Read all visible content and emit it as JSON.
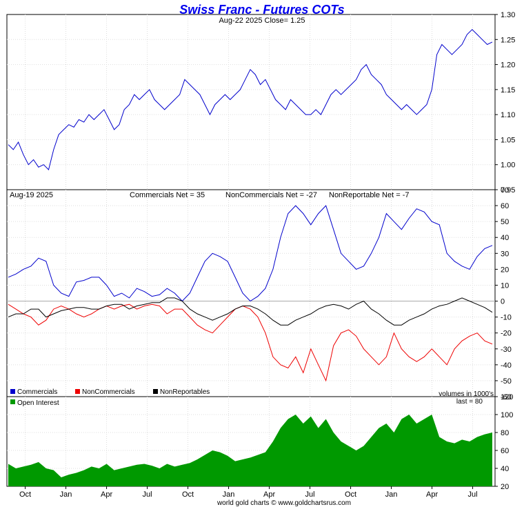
{
  "chart_data": [
    {
      "type": "line",
      "title": "Swiss Franc - Futures COTs",
      "subtitle": "Aug-22  2025   Close= 1.25",
      "ylim": [
        0.95,
        1.3
      ],
      "yticks": [
        "0.95",
        "1.00",
        "1.05",
        "1.10",
        "1.15",
        "1.20",
        "1.25",
        "1.30"
      ],
      "color": "#0000cc",
      "series": [
        {
          "values": [
            1.04,
            1.03,
            1.045,
            1.02,
            1.0,
            1.01,
            0.995,
            1.0,
            0.99,
            1.03,
            1.06,
            1.07,
            1.08,
            1.075,
            1.09,
            1.085,
            1.1,
            1.09,
            1.1,
            1.11,
            1.09,
            1.07,
            1.08,
            1.11,
            1.12,
            1.14,
            1.13,
            1.14,
            1.15,
            1.13,
            1.12,
            1.11,
            1.12,
            1.13,
            1.14,
            1.17,
            1.16,
            1.15,
            1.14,
            1.12,
            1.1,
            1.12,
            1.13,
            1.14,
            1.13,
            1.14,
            1.15,
            1.17,
            1.19,
            1.18,
            1.16,
            1.17,
            1.15,
            1.13,
            1.12,
            1.11,
            1.13,
            1.12,
            1.11,
            1.1,
            1.1,
            1.11,
            1.1,
            1.12,
            1.14,
            1.15,
            1.14,
            1.15,
            1.16,
            1.17,
            1.19,
            1.2,
            1.18,
            1.17,
            1.16,
            1.14,
            1.13,
            1.12,
            1.11,
            1.12,
            1.11,
            1.1,
            1.11,
            1.12,
            1.15,
            1.22,
            1.24,
            1.23,
            1.22,
            1.23,
            1.24,
            1.26,
            1.27,
            1.26,
            1.25,
            1.24,
            1.245
          ]
        }
      ]
    },
    {
      "type": "line",
      "date_label": "Aug-19  2025",
      "net_labels": [
        "Commercials Net = 35",
        "NonCommercials Net = -27",
        "NonReportable Net = -7"
      ],
      "ylim": [
        -60,
        70
      ],
      "yticks": [
        "-60",
        "-50",
        "-40",
        "-30",
        "-20",
        "-10",
        "0",
        "10",
        "20",
        "30",
        "40",
        "50",
        "60",
        "70"
      ],
      "units_note": "volumes in 1000's",
      "legend": [
        "Commercials",
        "NonCommercials",
        "NonReportables"
      ],
      "colors": [
        "#0000cc",
        "#ee0000",
        "#000000"
      ],
      "series": [
        {
          "name": "Commercials",
          "values": [
            15,
            17,
            20,
            22,
            27,
            25,
            10,
            5,
            3,
            12,
            13,
            15,
            15,
            10,
            3,
            5,
            2,
            8,
            6,
            3,
            4,
            8,
            5,
            0,
            5,
            15,
            25,
            30,
            28,
            25,
            15,
            5,
            0,
            3,
            8,
            20,
            40,
            55,
            60,
            55,
            48,
            55,
            60,
            45,
            30,
            25,
            20,
            22,
            30,
            40,
            55,
            50,
            45,
            52,
            58,
            56,
            50,
            48,
            30,
            25,
            22,
            20,
            28,
            33,
            35
          ]
        },
        {
          "name": "NonCommercials",
          "values": [
            -2,
            -5,
            -8,
            -10,
            -15,
            -12,
            -5,
            -3,
            -5,
            -8,
            -10,
            -8,
            -5,
            -3,
            -5,
            -3,
            -2,
            -5,
            -3,
            -2,
            -3,
            -8,
            -5,
            -5,
            -10,
            -15,
            -18,
            -20,
            -15,
            -10,
            -5,
            -3,
            -5,
            -10,
            -20,
            -35,
            -40,
            -42,
            -35,
            -45,
            -30,
            -40,
            -50,
            -28,
            -20,
            -18,
            -22,
            -30,
            -35,
            -40,
            -35,
            -20,
            -30,
            -35,
            -38,
            -35,
            -30,
            -35,
            -40,
            -30,
            -25,
            -22,
            -20,
            -25,
            -27
          ]
        },
        {
          "name": "NonReportables",
          "values": [
            -10,
            -8,
            -8,
            -5,
            -5,
            -10,
            -8,
            -6,
            -5,
            -4,
            -4,
            -5,
            -5,
            -3,
            -2,
            -2,
            -5,
            -3,
            -2,
            -1,
            -1,
            2,
            2,
            0,
            -5,
            -8,
            -10,
            -12,
            -10,
            -8,
            -5,
            -3,
            -3,
            -5,
            -8,
            -12,
            -15,
            -15,
            -12,
            -10,
            -8,
            -5,
            -3,
            -2,
            -3,
            -5,
            -2,
            0,
            -5,
            -8,
            -12,
            -15,
            -15,
            -12,
            -10,
            -8,
            -5,
            -3,
            -2,
            0,
            2,
            0,
            -2,
            -4,
            -7
          ]
        }
      ]
    },
    {
      "type": "area",
      "legend": [
        "Open Interest"
      ],
      "last_label": "last = 80",
      "ylim": [
        20,
        120
      ],
      "yticks": [
        "20",
        "40",
        "60",
        "80",
        "100",
        "120"
      ],
      "color": "#009900",
      "series": [
        {
          "name": "Open Interest",
          "values": [
            45,
            40,
            42,
            44,
            47,
            40,
            38,
            30,
            33,
            35,
            38,
            42,
            40,
            45,
            38,
            40,
            42,
            44,
            45,
            43,
            40,
            45,
            42,
            44,
            46,
            50,
            55,
            60,
            58,
            54,
            48,
            50,
            52,
            55,
            58,
            70,
            85,
            95,
            100,
            90,
            98,
            85,
            95,
            80,
            70,
            65,
            60,
            65,
            75,
            85,
            90,
            80,
            95,
            100,
            90,
            95,
            100,
            75,
            70,
            68,
            72,
            70,
            75,
            78,
            80
          ]
        }
      ]
    }
  ],
  "xaxis": {
    "labels": [
      "Oct",
      "Jan",
      "Apr",
      "Jul",
      "Oct",
      "Jan",
      "Apr",
      "Jul",
      "Oct",
      "Jan",
      "Apr",
      "Jul"
    ]
  },
  "footer": "world gold charts © www.goldchartsrus.com"
}
